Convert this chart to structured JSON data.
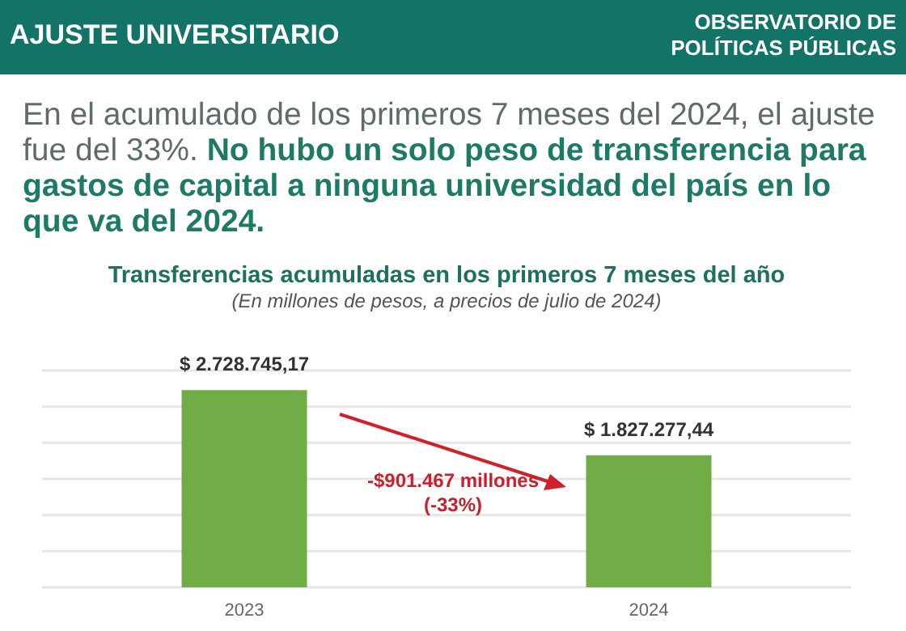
{
  "chart_data": {
    "type": "bar",
    "title": "Transferencias acumuladas en los primeros 7 meses del año",
    "subtitle": "(En millones de pesos, a precios de julio de 2024)",
    "categories": [
      "2023",
      "2024"
    ],
    "values": [
      2728745.17,
      1827277.44
    ],
    "color": "#70ad47",
    "value_labels": [
      "$ 2.728.745,17",
      "$ 1.827.277,44"
    ],
    "ylim": [
      0,
      3000000
    ],
    "yticks": [
      {
        "value": 0,
        "label": null
      },
      {
        "value": 500000,
        "label": null
      },
      {
        "value": 1000000,
        "label": null
      },
      {
        "value": 1500000,
        "label": null
      },
      {
        "value": 2000000,
        "label": null
      },
      {
        "value": 2500000,
        "label": null
      },
      {
        "value": 3000000,
        "label": null
      }
    ],
    "grid": "y",
    "tick_labels": "x",
    "annotations": [
      "AJUSTE UNIVERSITARIO",
      "OBSERVATORIO DE POLÍTICAS PÚBLICAS",
      "En el acumulado de los primeros 7 meses del 2024, el ajuste fue del 33%.",
      "No hubo un solo peso de transferencia para gastos de capital a ninguna universidad del país en lo que va del 2024.",
      "-$901.467 millones (-33%)"
    ]
  }
}
